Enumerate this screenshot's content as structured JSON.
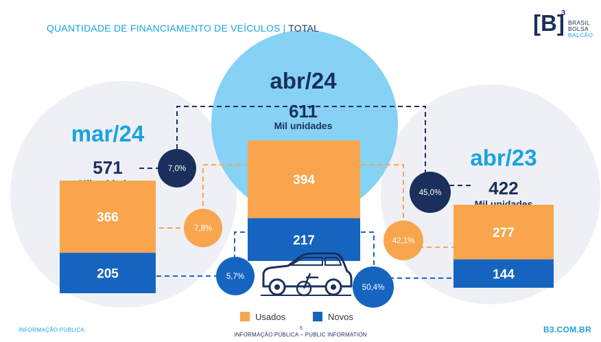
{
  "header": {
    "title": "QUANTIDADE DE FINANCIAMENTO DE VEÍCULOS",
    "separator": "|",
    "title_suffix": "TOTAL"
  },
  "logo": {
    "mark": "[B]",
    "superscript": "3",
    "line1": "BRASIL",
    "line2": "BOLSA",
    "line3": "BALCÃO"
  },
  "chart_data": {
    "type": "bar",
    "stacked": true,
    "categories": [
      "mar/24",
      "abr/24",
      "abr/23"
    ],
    "series": [
      {
        "name": "Usados",
        "values": [
          366,
          394,
          277
        ]
      },
      {
        "name": "Novos",
        "values": [
          205,
          217,
          144
        ]
      }
    ],
    "totals": [
      {
        "value": "571",
        "unit": "Mil unidades"
      },
      {
        "value": "611",
        "unit": "Mil unidades"
      },
      {
        "value": "422",
        "unit": "Mil unidades"
      }
    ],
    "variations": [
      {
        "label": "7,0%",
        "kind": "total",
        "compared": [
          "mar/24",
          "abr/24"
        ]
      },
      {
        "label": "7,8%",
        "kind": "usados",
        "compared": [
          "mar/24",
          "abr/24"
        ]
      },
      {
        "label": "5,7%",
        "kind": "novos",
        "compared": [
          "mar/24",
          "abr/24"
        ]
      },
      {
        "label": "45,0%",
        "kind": "total",
        "compared": [
          "abr/23",
          "abr/24"
        ]
      },
      {
        "label": "42,1%",
        "kind": "usados",
        "compared": [
          "abr/23",
          "abr/24"
        ]
      },
      {
        "label": "50,4%",
        "kind": "novos",
        "compared": [
          "abr/23",
          "abr/24"
        ]
      }
    ],
    "legend": {
      "items": [
        "Usados",
        "Novos"
      ],
      "position": "bottom-center"
    },
    "colors": {
      "usados": "#f8a54e",
      "novos": "#1565c0",
      "navy": "#1a2f5c",
      "accent": "#1aa3e0",
      "light_blue": "#86d2f4"
    }
  },
  "footer": {
    "left": "INFORMAÇÃO PÚBLICA",
    "page_number": "5",
    "center": "INFORMAÇÃO PÚBLICA – PUBLIC INFORMATION",
    "right": "B3.COM.BR"
  }
}
